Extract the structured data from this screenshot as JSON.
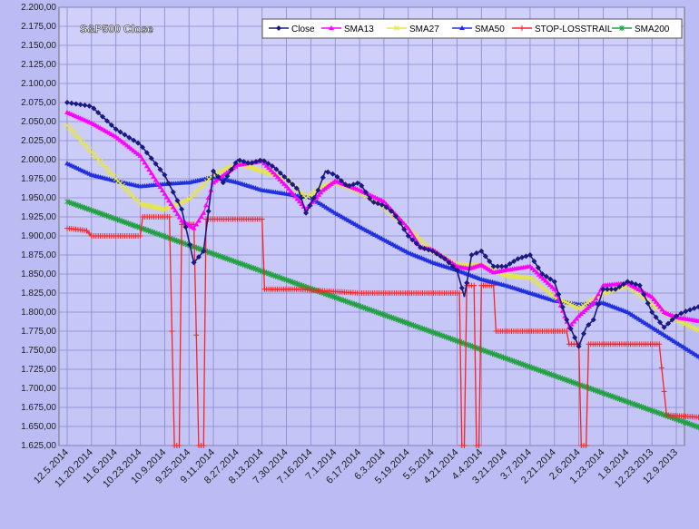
{
  "chart_data": {
    "type": "line",
    "title": "S&P500 Close",
    "xlabel": "",
    "ylabel": "",
    "ylim": [
      1625,
      2200
    ],
    "ytick_step": 25,
    "grid": true,
    "legend_position": "top-right",
    "x_order": "newest-first",
    "x_tick_labels": [
      "12.5.2014",
      "11.20.2014",
      "11.6.2014",
      "10.23.2014",
      "10.9.2014",
      "9.25.2014",
      "9.11.2014",
      "8.27.2014",
      "8.13.2014",
      "7.30.2014",
      "7.16.2014",
      "7.1.2014",
      "6.17.2014",
      "6.3.2014",
      "5.19.2014",
      "5.5.2014",
      "4.21.2014",
      "4.4.2014",
      "3.21.2014",
      "3.7.2014",
      "2.21.2014",
      "2.6.2014",
      "1.23.2014",
      "1.8.2014",
      "12.23.2013",
      "12.9.2013"
    ],
    "series": [
      {
        "name": "Close",
        "color": "#1a1a80",
        "marker": "diamond",
        "keypoints": [
          [
            0,
            2075
          ],
          [
            1,
            2070
          ],
          [
            2,
            2040
          ],
          [
            3,
            2020
          ],
          [
            4,
            1980
          ],
          [
            4.7,
            1935
          ],
          [
            5.2,
            1865
          ],
          [
            5.6,
            1880
          ],
          [
            6,
            1985
          ],
          [
            6.4,
            1970
          ],
          [
            7,
            2000
          ],
          [
            7.5,
            1995
          ],
          [
            8,
            2000
          ],
          [
            8.5,
            1990
          ],
          [
            9,
            1975
          ],
          [
            9.5,
            1960
          ],
          [
            9.8,
            1930
          ],
          [
            10.3,
            1960
          ],
          [
            10.6,
            1985
          ],
          [
            11,
            1980
          ],
          [
            11.5,
            1965
          ],
          [
            12,
            1970
          ],
          [
            12.5,
            1945
          ],
          [
            13,
            1940
          ],
          [
            13.4,
            1930
          ],
          [
            14,
            1900
          ],
          [
            14.5,
            1885
          ],
          [
            15,
            1880
          ],
          [
            15.5,
            1870
          ],
          [
            16,
            1855
          ],
          [
            16.3,
            1820
          ],
          [
            16.6,
            1875
          ],
          [
            17,
            1880
          ],
          [
            17.5,
            1860
          ],
          [
            18,
            1860
          ],
          [
            18.5,
            1870
          ],
          [
            19,
            1875
          ],
          [
            19.5,
            1850
          ],
          [
            20,
            1840
          ],
          [
            20.5,
            1790
          ],
          [
            21,
            1755
          ],
          [
            21.3,
            1780
          ],
          [
            21.6,
            1790
          ],
          [
            22,
            1830
          ],
          [
            22.5,
            1830
          ],
          [
            23,
            1840
          ],
          [
            23.5,
            1835
          ],
          [
            24,
            1800
          ],
          [
            24.5,
            1780
          ],
          [
            25,
            1795
          ],
          [
            25.3,
            1800
          ],
          [
            26,
            1808
          ]
        ]
      },
      {
        "name": "SMA13",
        "color": "#ff00ff",
        "marker": "triangle",
        "keypoints": [
          [
            0,
            2062
          ],
          [
            1,
            2048
          ],
          [
            2,
            2030
          ],
          [
            3,
            2005
          ],
          [
            4,
            1955
          ],
          [
            4.7,
            1920
          ],
          [
            5.2,
            1910
          ],
          [
            5.6,
            1930
          ],
          [
            6,
            1970
          ],
          [
            7,
            1993
          ],
          [
            8,
            1998
          ],
          [
            9,
            1965
          ],
          [
            9.8,
            1935
          ],
          [
            10.5,
            1960
          ],
          [
            11,
            1972
          ],
          [
            12,
            1960
          ],
          [
            13,
            1945
          ],
          [
            14,
            1910
          ],
          [
            14.5,
            1885
          ],
          [
            15,
            1882
          ],
          [
            16,
            1860
          ],
          [
            16.5,
            1857
          ],
          [
            17,
            1862
          ],
          [
            17.5,
            1852
          ],
          [
            18,
            1855
          ],
          [
            19,
            1860
          ],
          [
            20,
            1830
          ],
          [
            20.6,
            1780
          ],
          [
            21,
            1795
          ],
          [
            21.6,
            1812
          ],
          [
            22,
            1835
          ],
          [
            23,
            1838
          ],
          [
            24,
            1820
          ],
          [
            24.5,
            1800
          ],
          [
            25,
            1793
          ],
          [
            26,
            1788
          ]
        ]
      },
      {
        "name": "SMA27",
        "color": "#e6e64a",
        "marker": "x",
        "keypoints": [
          [
            0,
            2045
          ],
          [
            1,
            2010
          ],
          [
            2,
            1975
          ],
          [
            3,
            1942
          ],
          [
            4,
            1935
          ],
          [
            5,
            1948
          ],
          [
            6,
            1980
          ],
          [
            7,
            1995
          ],
          [
            8,
            1985
          ],
          [
            9,
            1975
          ],
          [
            9.8,
            1950
          ],
          [
            10.5,
            1965
          ],
          [
            11,
            1970
          ],
          [
            12,
            1958
          ],
          [
            13,
            1938
          ],
          [
            14,
            1910
          ],
          [
            15,
            1880
          ],
          [
            16,
            1862
          ],
          [
            17,
            1862
          ],
          [
            18,
            1848
          ],
          [
            19,
            1845
          ],
          [
            20,
            1820
          ],
          [
            21,
            1805
          ],
          [
            22,
            1825
          ],
          [
            23,
            1835
          ],
          [
            24,
            1810
          ],
          [
            25,
            1790
          ],
          [
            26,
            1775
          ]
        ]
      },
      {
        "name": "SMA50",
        "color": "#2030e0",
        "marker": "triangle",
        "keypoints": [
          [
            0,
            1995
          ],
          [
            1,
            1980
          ],
          [
            2,
            1972
          ],
          [
            3,
            1965
          ],
          [
            4,
            1968
          ],
          [
            5,
            1970
          ],
          [
            6,
            1977
          ],
          [
            7,
            1970
          ],
          [
            8,
            1960
          ],
          [
            9,
            1955
          ],
          [
            10,
            1950
          ],
          [
            11,
            1930
          ],
          [
            12,
            1912
          ],
          [
            13,
            1895
          ],
          [
            14,
            1878
          ],
          [
            15,
            1865
          ],
          [
            16,
            1855
          ],
          [
            17,
            1843
          ],
          [
            18,
            1835
          ],
          [
            19,
            1825
          ],
          [
            20,
            1815
          ],
          [
            21,
            1810
          ],
          [
            22,
            1812
          ],
          [
            23,
            1800
          ],
          [
            24,
            1780
          ],
          [
            25,
            1760
          ],
          [
            26,
            1740
          ]
        ]
      },
      {
        "name": "STOP-LOSSTRAIL",
        "color": "#ff2020",
        "marker": "plus",
        "keypoints": [
          [
            0,
            1910
          ],
          [
            0.8,
            1907
          ],
          [
            1,
            1900
          ],
          [
            3,
            1900
          ],
          [
            3.1,
            1925
          ],
          [
            4.2,
            1925
          ],
          [
            4.4,
            1625
          ],
          [
            4.6,
            1625
          ],
          [
            4.7,
            1915
          ],
          [
            5.2,
            1915
          ],
          [
            5.4,
            1625
          ],
          [
            5.6,
            1625
          ],
          [
            5.7,
            1922
          ],
          [
            7.9,
            1922
          ],
          [
            8,
            1922
          ],
          [
            8.1,
            1830
          ],
          [
            9.5,
            1830
          ],
          [
            12,
            1825
          ],
          [
            16.1,
            1825
          ],
          [
            16.2,
            1625
          ],
          [
            16.3,
            1625
          ],
          [
            16.4,
            1835
          ],
          [
            16.7,
            1835
          ],
          [
            16.8,
            1625
          ],
          [
            16.9,
            1625
          ],
          [
            17,
            1835
          ],
          [
            17.5,
            1835
          ],
          [
            17.6,
            1775
          ],
          [
            20.5,
            1775
          ],
          [
            20.6,
            1758
          ],
          [
            21,
            1758
          ],
          [
            21.1,
            1625
          ],
          [
            21.3,
            1625
          ],
          [
            21.4,
            1758
          ],
          [
            24.3,
            1758
          ],
          [
            24.6,
            1665
          ],
          [
            26,
            1662
          ]
        ]
      },
      {
        "name": "SMA200",
        "color": "#20a040",
        "marker": "star",
        "keypoints": [
          [
            0,
            1945
          ],
          [
            26,
            1648
          ]
        ]
      }
    ]
  }
}
